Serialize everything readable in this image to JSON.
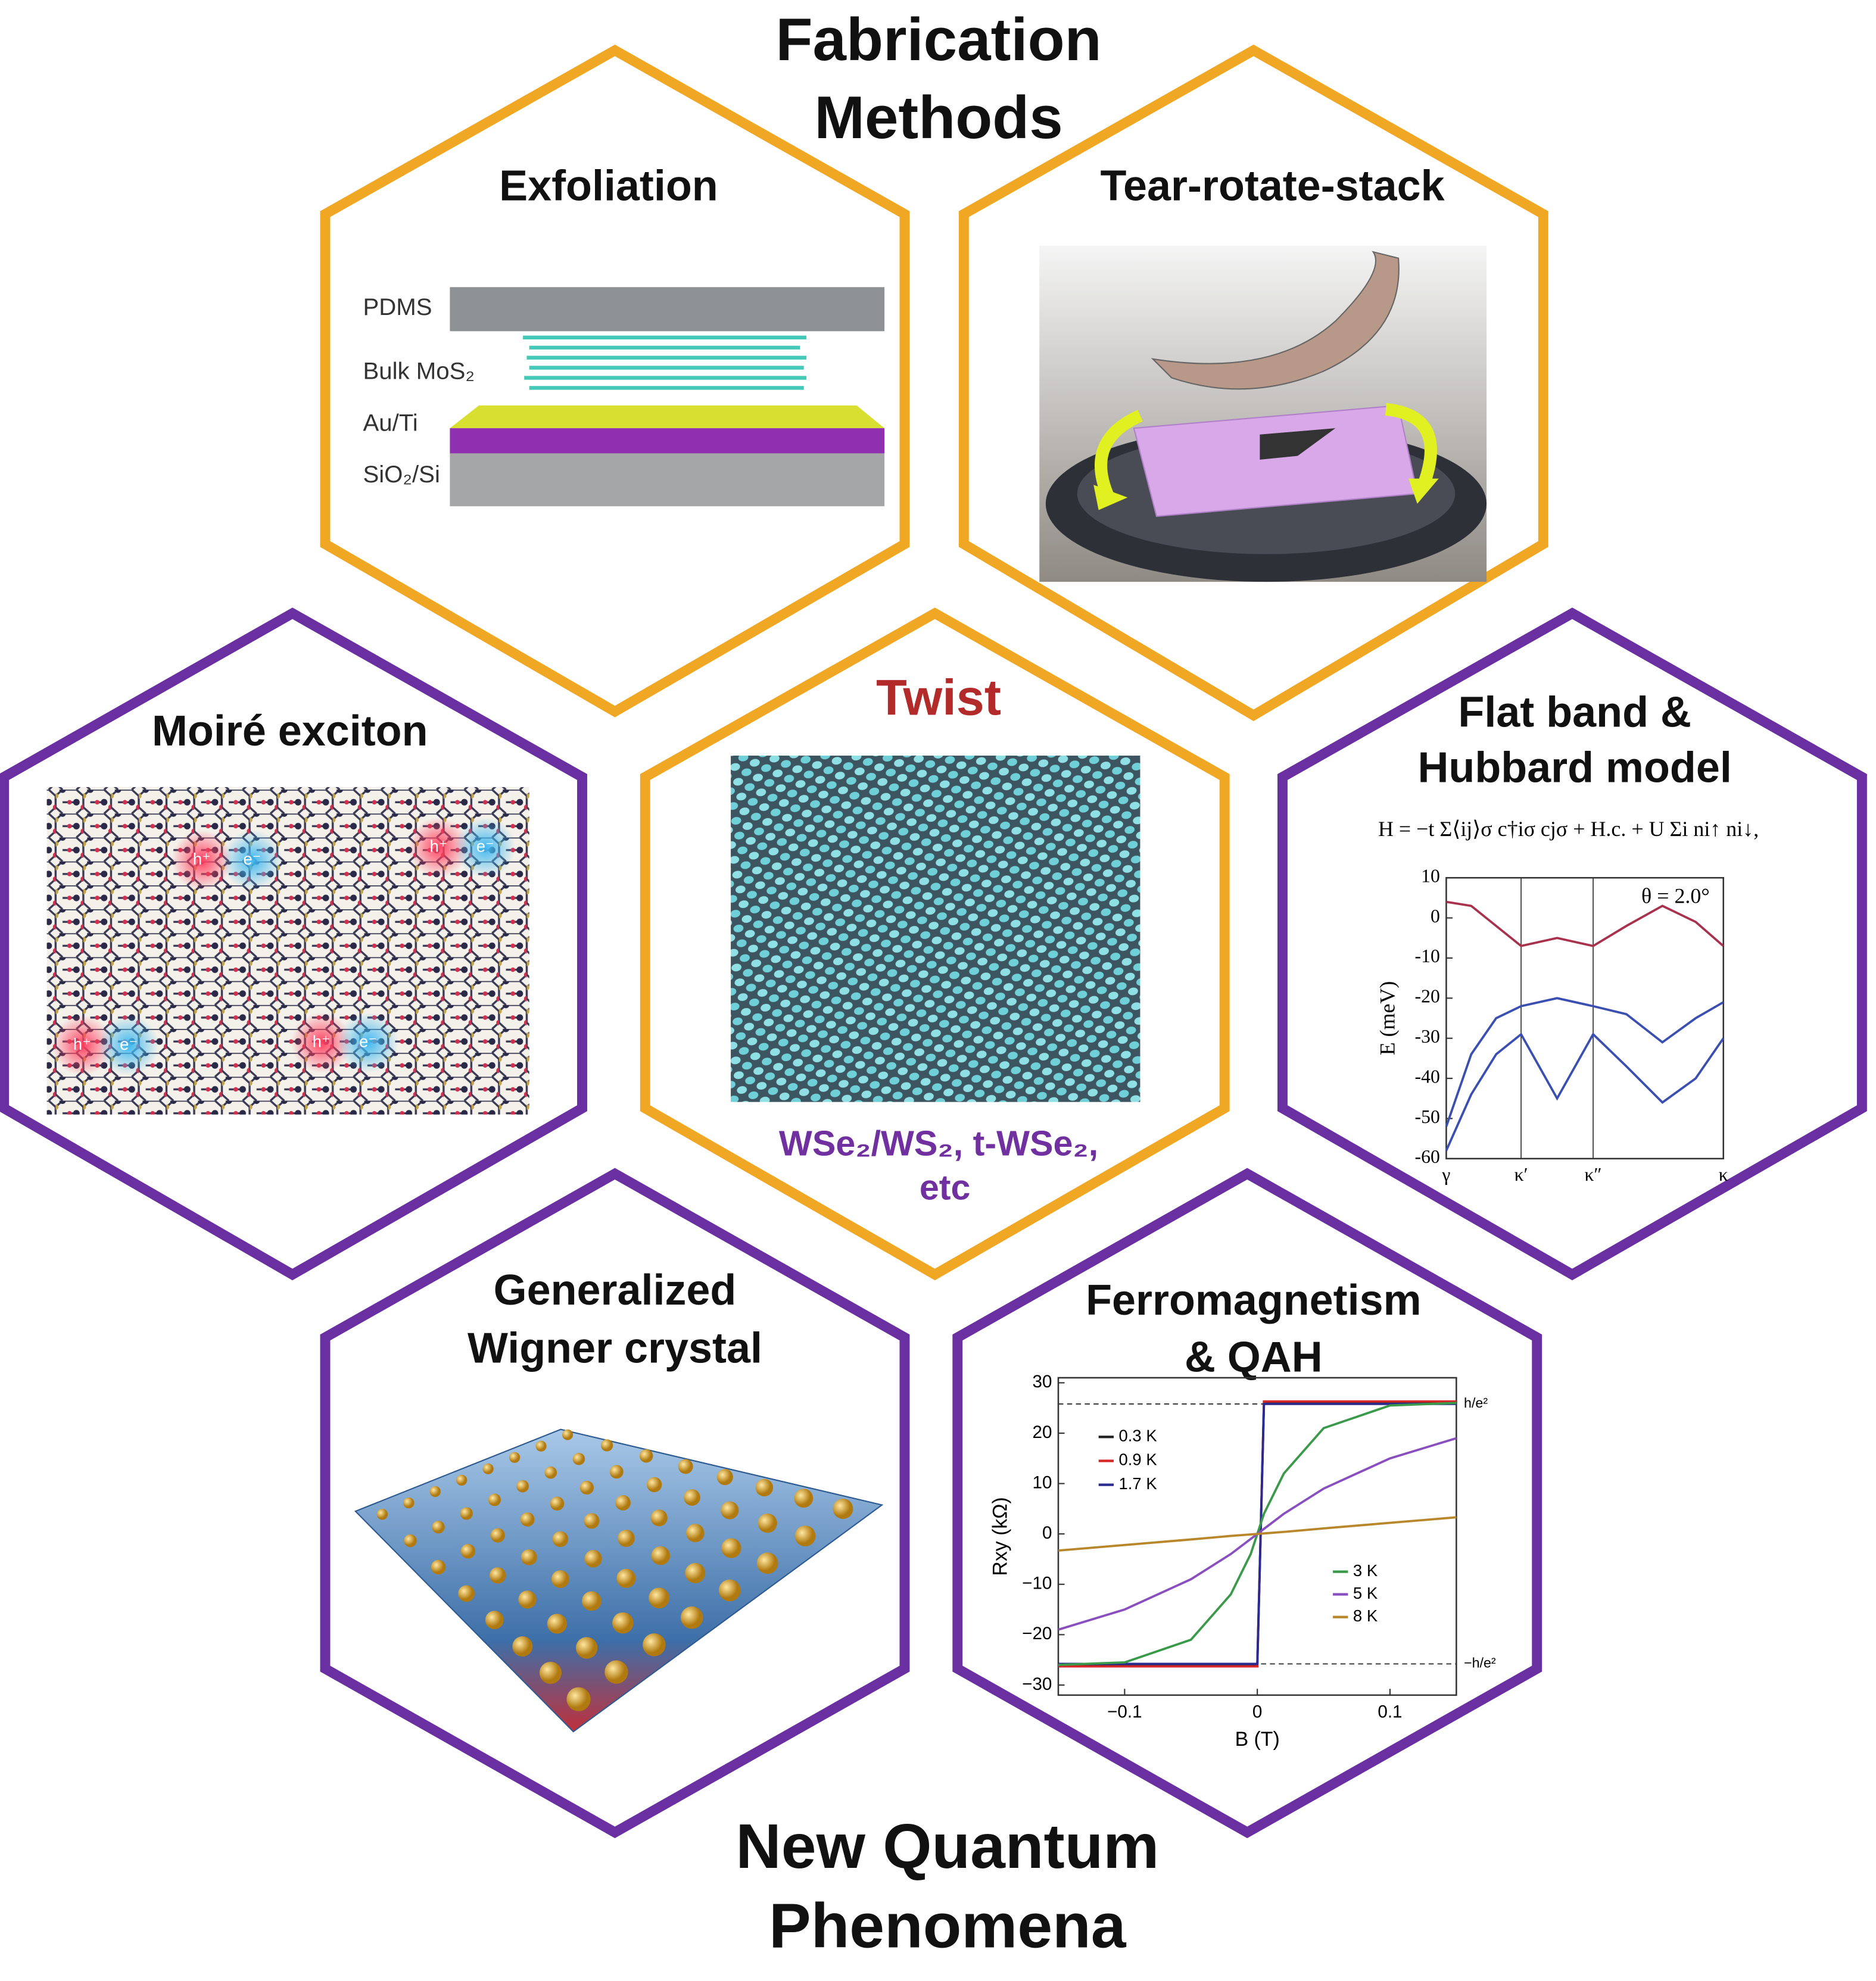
{
  "header": {
    "title_lines": [
      "Fabrication",
      "Methods"
    ]
  },
  "footer": {
    "title_lines": [
      "New Quantum",
      "Phenomena"
    ]
  },
  "exfoliation": {
    "title": "Exfoliation",
    "layers": [
      "PDMS",
      "Bulk MoS₂",
      "Au/Ti",
      "SiO₂/Si"
    ]
  },
  "tear_rotate_stack": {
    "title": "Tear-rotate-stack"
  },
  "twist": {
    "title": "Twist",
    "caption_lines": [
      "WSe₂/WS₂, t-WSe₂,",
      "etc"
    ]
  },
  "moire_exciton": {
    "title": "Moiré exciton",
    "carriers": [
      "h⁺",
      "e⁻",
      "h⁺",
      "e⁻",
      "h⁺",
      "e⁻",
      "h⁺",
      "e⁻"
    ]
  },
  "flat_band": {
    "title_lines": [
      "Flat band &",
      "Hubbard model"
    ],
    "equation": "H = −t Σ⟨ij⟩σ c†iσ cjσ + H.c. + U Σi ni↑ ni↓,",
    "chart": {
      "type": "line",
      "ylabel": "E (meV)",
      "annotation": "θ = 2.0°",
      "x": [
        0,
        0.09,
        0.18,
        0.27,
        0.4,
        0.53,
        0.65,
        0.78,
        0.9,
        1
      ],
      "xlim": [
        0,
        1
      ],
      "xticks": [
        {
          "value": 0,
          "label": "γ"
        },
        {
          "value": 0.27,
          "label": "κ′"
        },
        {
          "value": 0.53,
          "label": "κ″"
        },
        {
          "value": 1,
          "label": "κ"
        }
      ],
      "ylim": [
        -60,
        10
      ],
      "yticks": [
        10,
        0,
        -10,
        -20,
        -30,
        -40,
        -50,
        -60
      ],
      "series": [
        {
          "color": "#a8324e",
          "values": [
            4,
            3,
            -2,
            -7,
            -5,
            -7,
            -2,
            3,
            -1,
            -7
          ]
        },
        {
          "color": "#3a4fb0",
          "values": [
            -52,
            -34,
            -25,
            -22,
            -20,
            -22,
            -24,
            -31,
            -25,
            -21
          ]
        },
        {
          "color": "#3a4fb0",
          "values": [
            -58,
            -44,
            -34,
            -29,
            -45,
            -29,
            -37,
            -46,
            -40,
            -30
          ]
        }
      ]
    }
  },
  "wigner": {
    "title_lines": [
      "Generalized",
      "Wigner crystal"
    ]
  },
  "ferromagnetism": {
    "title_lines": [
      "Ferromagnetism",
      "& QAH"
    ],
    "chart": {
      "type": "line",
      "xlabel": "B (T)",
      "ylabel": "Rxy (kΩ)",
      "x": [
        -0.15,
        -0.1,
        -0.05,
        -0.02,
        -0.005,
        0,
        0.005,
        0.02,
        0.05,
        0.1,
        0.15
      ],
      "xlim": [
        -0.15,
        0.15
      ],
      "xticks": [
        {
          "value": -0.1,
          "label": "−0.1"
        },
        0,
        0.1
      ],
      "ylim": [
        -32,
        31
      ],
      "yticks": [
        {
          "value": -30,
          "label": "−30"
        },
        {
          "value": -20,
          "label": "−20"
        },
        {
          "value": -10,
          "label": "−10"
        },
        0,
        10,
        20,
        30
      ],
      "reference_lines": [
        {
          "value": 25.8,
          "label": "h/e²"
        },
        {
          "value": -25.8,
          "label": "−h/e²"
        }
      ],
      "series": [
        {
          "name": "0.3 K",
          "color": "#222222",
          "values": [
            -26,
            -26,
            -26,
            -26,
            -26,
            -26,
            26,
            26,
            26,
            26,
            26
          ]
        },
        {
          "name": "0.9 K",
          "color": "#d62728",
          "values": [
            -26.3,
            -26.3,
            -26.3,
            -26.3,
            -26.3,
            -26.3,
            26.3,
            26.3,
            26.3,
            26.3,
            26.3
          ]
        },
        {
          "name": "1.7 K",
          "color": "#2b2b8f",
          "values": [
            -25.8,
            -25.8,
            -25.8,
            -25.8,
            -25.8,
            -25.8,
            25.8,
            25.8,
            25.8,
            25.8,
            25.8
          ]
        },
        {
          "name": "3 K",
          "color": "#3a9a4a",
          "values": [
            -26,
            -25.5,
            -21,
            -12,
            -4,
            0,
            4,
            12,
            21,
            25.5,
            26
          ]
        },
        {
          "name": "5 K",
          "color": "#8a4fbf",
          "values": [
            -19,
            -15,
            -9,
            -4,
            -1,
            0,
            1,
            4,
            9,
            15,
            19
          ]
        },
        {
          "name": "8 K",
          "color": "#b8862b",
          "values": [
            -3.3,
            -2.2,
            -1.1,
            -0.4,
            -0.1,
            0,
            0.1,
            0.4,
            1.1,
            2.2,
            3.3
          ]
        }
      ]
    }
  }
}
